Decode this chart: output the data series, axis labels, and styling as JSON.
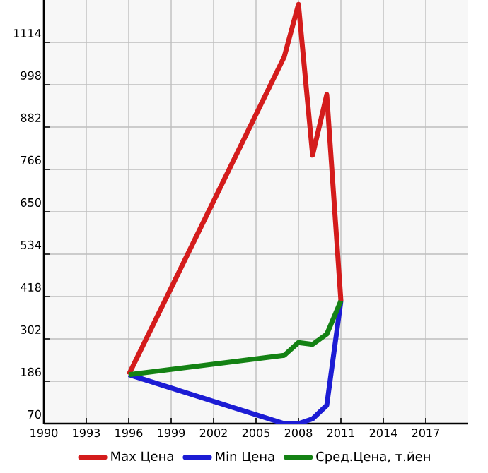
{
  "chart_data": {
    "type": "line",
    "x": [
      1996,
      2007,
      2008,
      2009,
      2010,
      2011
    ],
    "series": [
      {
        "name": "Max Цена",
        "color": "#d41c1c",
        "values": [
          204,
          1075,
          1218,
          805,
          971,
          406
        ]
      },
      {
        "name": "Min Цена",
        "color": "#1c1cd4",
        "values": [
          204,
          70,
          70,
          83,
          120,
          406
        ]
      },
      {
        "name": "Сред.Цена, т.йен",
        "color": "#148214",
        "values": [
          204,
          257,
          292,
          287,
          315,
          406
        ]
      }
    ],
    "xlim": [
      1990,
      2020
    ],
    "xticks": [
      1990,
      1993,
      1996,
      1999,
      2002,
      2005,
      2008,
      2011,
      2014,
      2017
    ],
    "ylim": [
      70,
      1230
    ],
    "yticks": [
      70,
      186,
      302,
      418,
      534,
      650,
      766,
      882,
      998,
      1114
    ],
    "grid": true,
    "legend": "bottom",
    "marker": "none",
    "line_style": "solid"
  }
}
